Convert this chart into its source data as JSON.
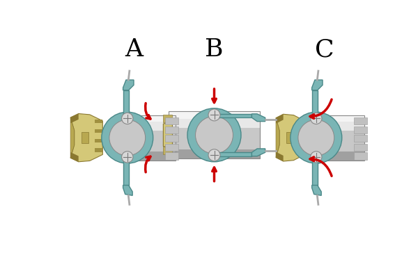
{
  "background_color": "#ffffff",
  "labels": [
    "A",
    "B",
    "C"
  ],
  "label_fontsize": 26,
  "arrow_color": "#cc0000",
  "teal": "#7ab5b5",
  "teal_edge": "#4a8888",
  "brass_light": "#d4c878",
  "brass_mid": "#b8a850",
  "brass_dark": "#8a7830",
  "silver_light": "#e8e8e8",
  "silver_mid": "#c8c8c8",
  "silver_dark": "#a0a0a0",
  "silver_highlight": "#f4f4f4",
  "pin_color": "#b0b0b0",
  "screw_color": "#d0d0d0"
}
